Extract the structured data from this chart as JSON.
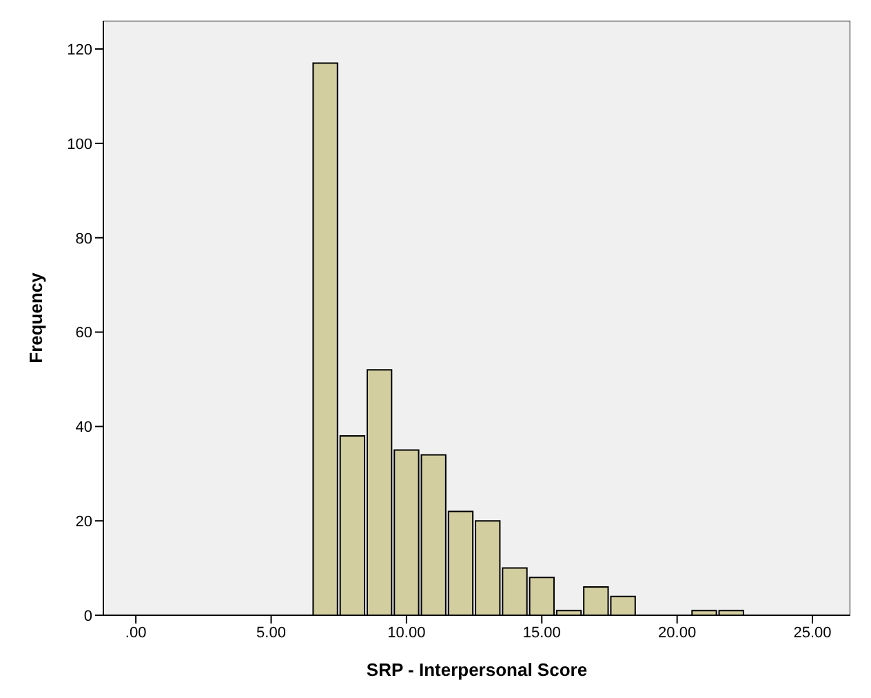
{
  "chart_data": {
    "type": "histogram",
    "xlabel": "SRP - Interpersonal Score",
    "ylabel": "Frequency",
    "bins": [
      6.5,
      7.5,
      8.5,
      9.5,
      10.5,
      11.5,
      12.5,
      13.5,
      14.5,
      15.5,
      16.5,
      17.5,
      18.5,
      19.5,
      20.5,
      21.5,
      22.5
    ],
    "values": [
      117,
      38,
      52,
      35,
      34,
      22,
      20,
      10,
      8,
      1,
      6,
      4,
      0,
      0,
      1,
      1
    ],
    "color": "#d3ce9f",
    "xlim": [
      -1.2,
      26.4
    ],
    "xticks": [
      {
        "value": 0,
        "label": ".00"
      },
      {
        "value": 5,
        "label": "5.00"
      },
      {
        "value": 10,
        "label": "10.00"
      },
      {
        "value": 15,
        "label": "15.00"
      },
      {
        "value": 20,
        "label": "20.00"
      },
      {
        "value": 25,
        "label": "25.00"
      }
    ],
    "ylim": [
      0,
      126
    ],
    "yticks": [
      0,
      20,
      40,
      60,
      80,
      100,
      120
    ],
    "grid": false
  }
}
